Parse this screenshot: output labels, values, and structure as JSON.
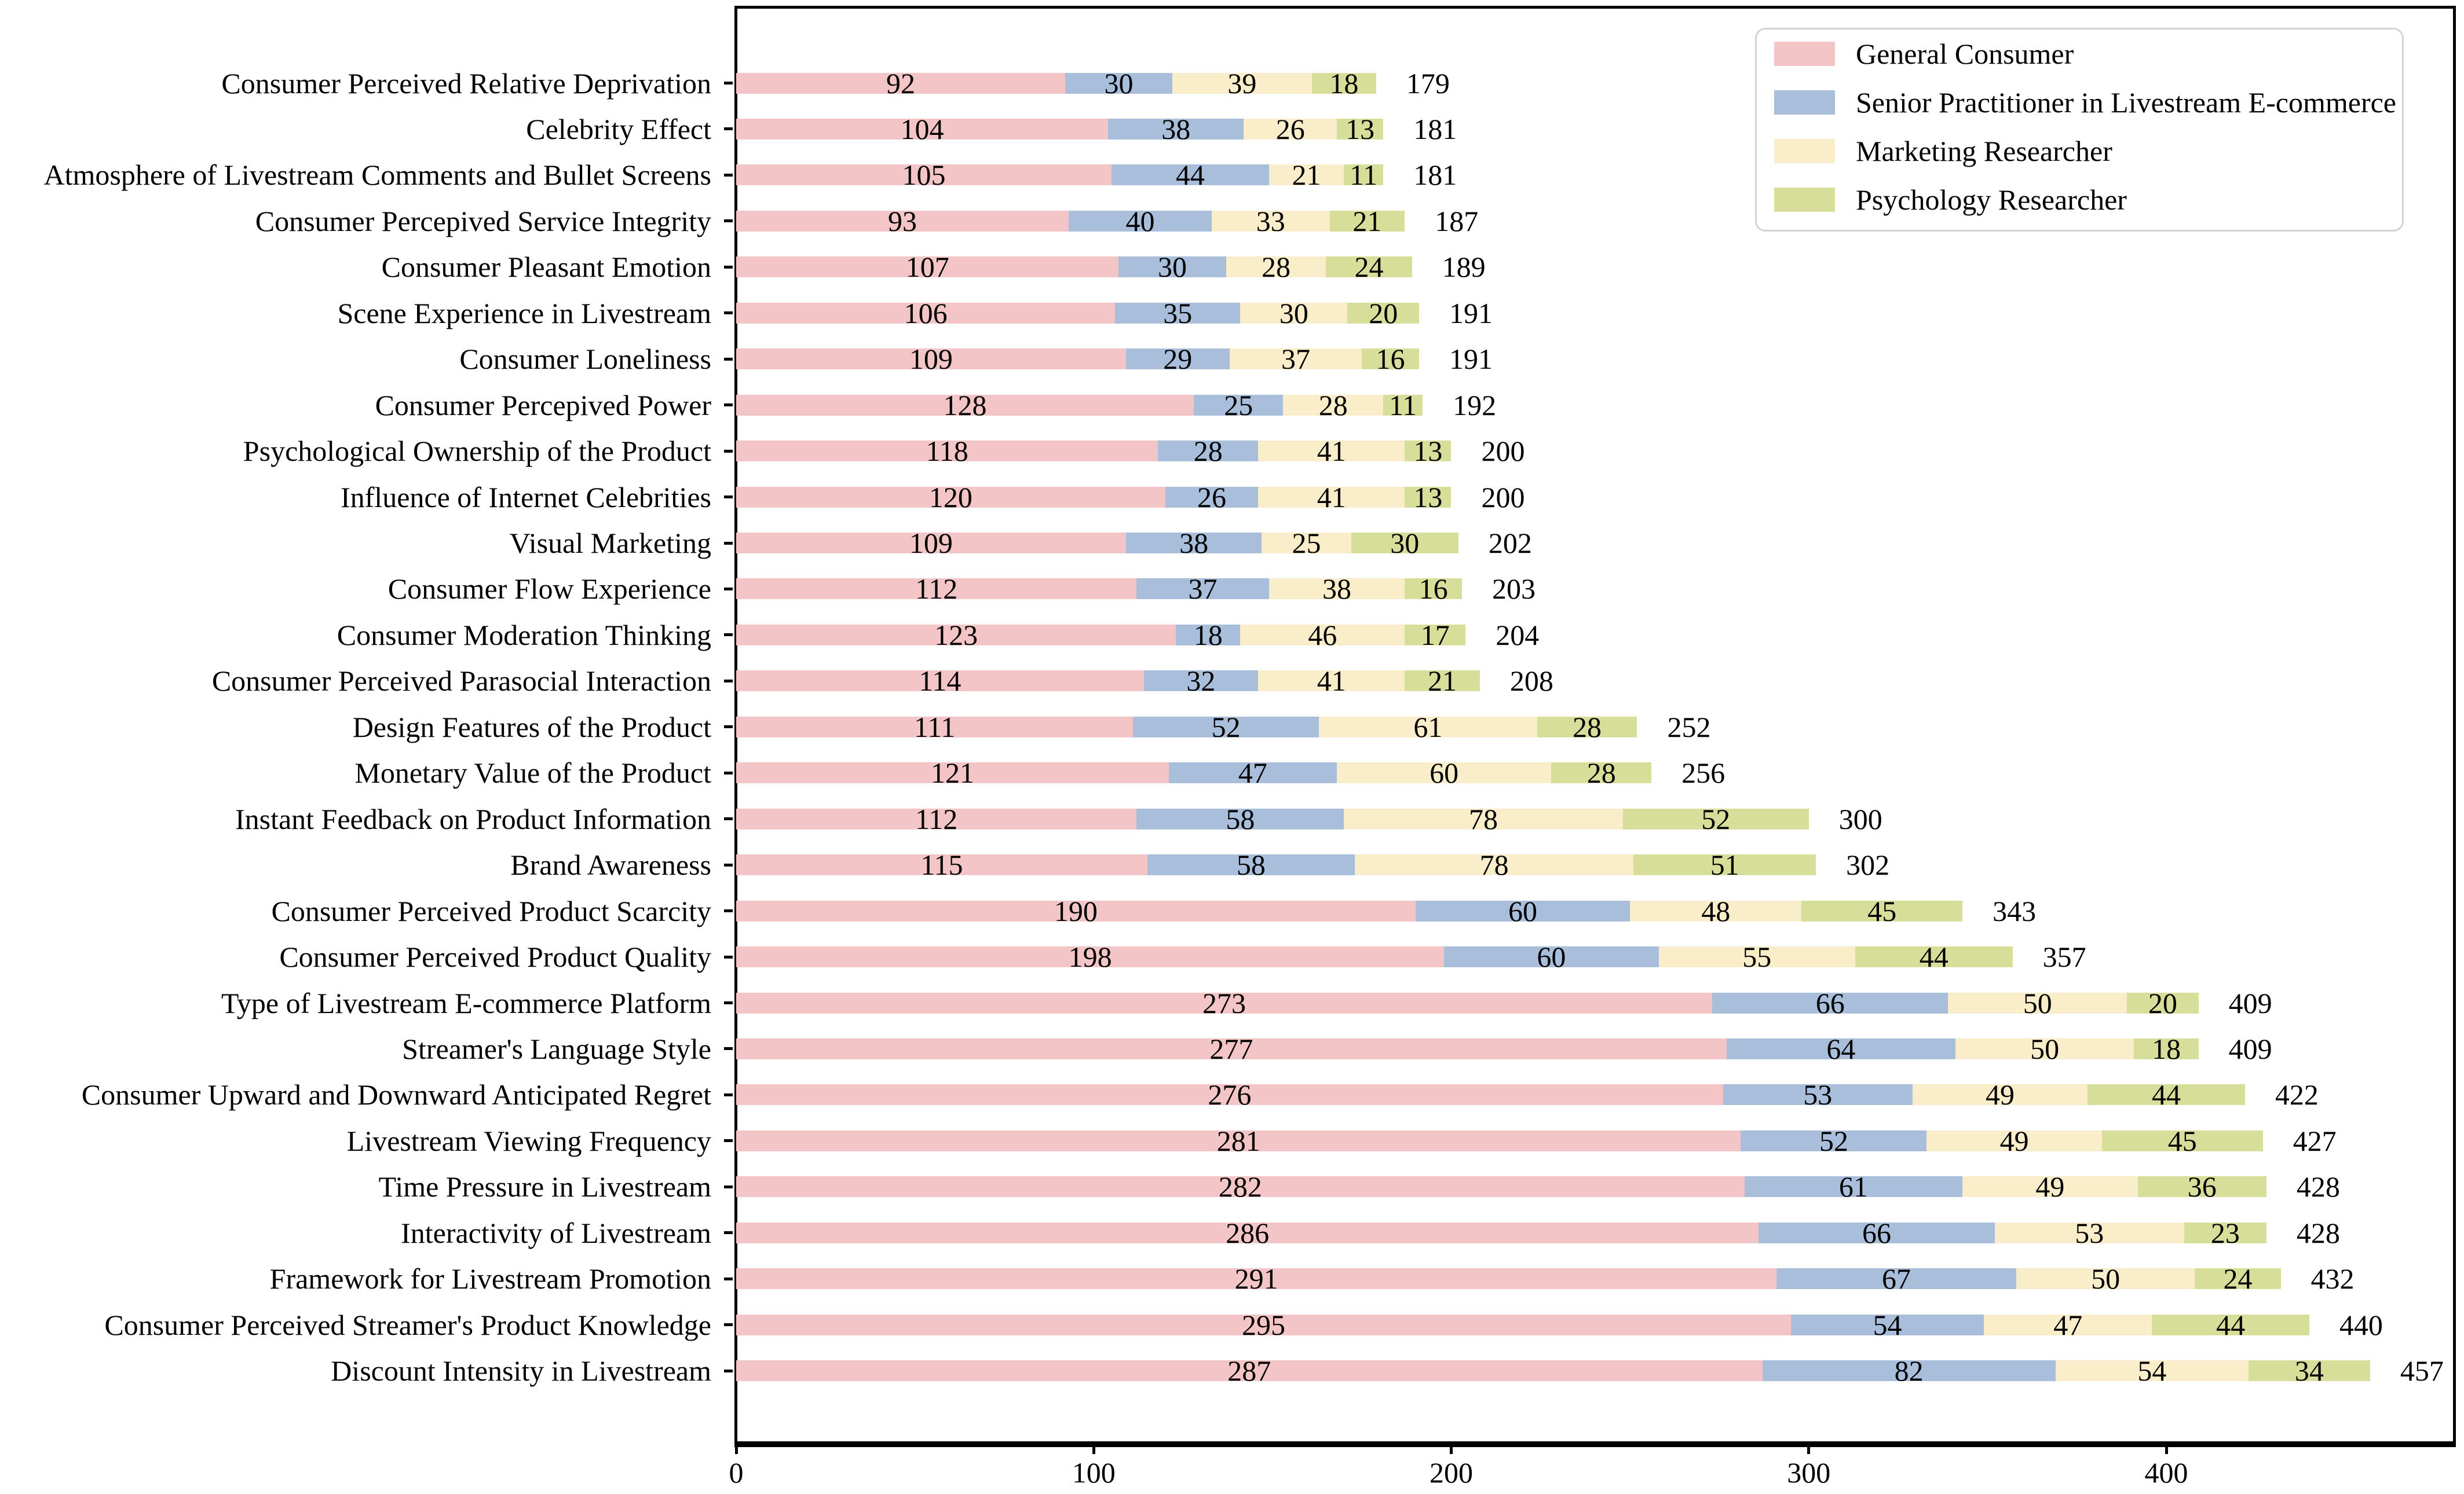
{
  "chart_data": {
    "type": "bar",
    "orientation": "horizontal",
    "stacked": true,
    "title": "",
    "xlabel": "",
    "ylabel": "",
    "xlim": [
      0,
      481
    ],
    "x_ticks": [
      "0",
      "100",
      "200",
      "300",
      "400"
    ],
    "x_tick_values": [
      0,
      100,
      200,
      300,
      400
    ],
    "grid": false,
    "legend_position": "upper right",
    "series": [
      {
        "name": "General Consumer",
        "color": "#f4c5c6"
      },
      {
        "name": "Senior Practitioner in Livestream E-commerce",
        "color": "#a9bedb"
      },
      {
        "name": "Marketing Researcher",
        "color": "#faedca"
      },
      {
        "name": "Psychology Researcher",
        "color": "#d6de9a"
      }
    ],
    "rows": [
      {
        "label": "Consumer Perceived Relative Deprivation",
        "values": [
          92,
          30,
          39,
          18
        ],
        "total": 179
      },
      {
        "label": "Celebrity Effect",
        "values": [
          104,
          38,
          26,
          13
        ],
        "total": 181
      },
      {
        "label": "Atmosphere of Livestream Comments and Bullet Screens",
        "values": [
          105,
          44,
          21,
          11
        ],
        "total": 181
      },
      {
        "label": "Consumer Percepived Service Integrity",
        "values": [
          93,
          40,
          33,
          21
        ],
        "total": 187
      },
      {
        "label": "Consumer Pleasant Emotion",
        "values": [
          107,
          30,
          28,
          24
        ],
        "total": 189
      },
      {
        "label": "Scene Experience in Livestream",
        "values": [
          106,
          35,
          30,
          20
        ],
        "total": 191
      },
      {
        "label": "Consumer Loneliness",
        "values": [
          109,
          29,
          37,
          16
        ],
        "total": 191
      },
      {
        "label": "Consumer Percepived Power",
        "values": [
          128,
          25,
          28,
          11
        ],
        "total": 192
      },
      {
        "label": "Psychological Ownership of the Product",
        "values": [
          118,
          28,
          41,
          13
        ],
        "total": 200
      },
      {
        "label": "Influence of Internet Celebrities",
        "values": [
          120,
          26,
          41,
          13
        ],
        "total": 200
      },
      {
        "label": "Visual Marketing",
        "values": [
          109,
          38,
          25,
          30
        ],
        "total": 202
      },
      {
        "label": "Consumer Flow Experience",
        "values": [
          112,
          37,
          38,
          16
        ],
        "total": 203
      },
      {
        "label": "Consumer Moderation Thinking",
        "values": [
          123,
          18,
          46,
          17
        ],
        "total": 204
      },
      {
        "label": "Consumer Perceived Parasocial Interaction",
        "values": [
          114,
          32,
          41,
          21
        ],
        "total": 208
      },
      {
        "label": "Design Features of the Product",
        "values": [
          111,
          52,
          61,
          28
        ],
        "total": 252
      },
      {
        "label": "Monetary Value of the Product",
        "values": [
          121,
          47,
          60,
          28
        ],
        "total": 256
      },
      {
        "label": "Instant Feedback on Product Information",
        "values": [
          112,
          58,
          78,
          52
        ],
        "total": 300
      },
      {
        "label": "Brand Awareness",
        "values": [
          115,
          58,
          78,
          51
        ],
        "total": 302
      },
      {
        "label": "Consumer Perceived Product Scarcity",
        "values": [
          190,
          60,
          48,
          45
        ],
        "total": 343
      },
      {
        "label": "Consumer Perceived Product Quality",
        "values": [
          198,
          60,
          55,
          44
        ],
        "total": 357
      },
      {
        "label": "Type of Livestream E-commerce Platform",
        "values": [
          273,
          66,
          50,
          20
        ],
        "total": 409
      },
      {
        "label": "Streamer's Language Style",
        "values": [
          277,
          64,
          50,
          18
        ],
        "total": 409
      },
      {
        "label": "Consumer Upward and Downward Anticipated Regret",
        "values": [
          276,
          53,
          49,
          44
        ],
        "total": 422
      },
      {
        "label": "Livestream Viewing Frequency",
        "values": [
          281,
          52,
          49,
          45
        ],
        "total": 427
      },
      {
        "label": "Time Pressure in Livestream",
        "values": [
          282,
          61,
          49,
          36
        ],
        "total": 428
      },
      {
        "label": "Interactivity of Livestream",
        "values": [
          286,
          66,
          53,
          23
        ],
        "total": 428
      },
      {
        "label": "Framework for Livestream Promotion",
        "values": [
          291,
          67,
          50,
          24
        ],
        "total": 432
      },
      {
        "label": "Consumer Perceived Streamer's Product Knowledge",
        "values": [
          295,
          54,
          47,
          44
        ],
        "total": 440
      },
      {
        "label": "Discount Intensity in Livestream",
        "values": [
          287,
          82,
          54,
          34
        ],
        "total": 457
      }
    ],
    "colors": {
      "axis": "#000000",
      "value_text": "#000000",
      "legend_border": "#d3d3d3",
      "background": "#ffffff"
    }
  }
}
